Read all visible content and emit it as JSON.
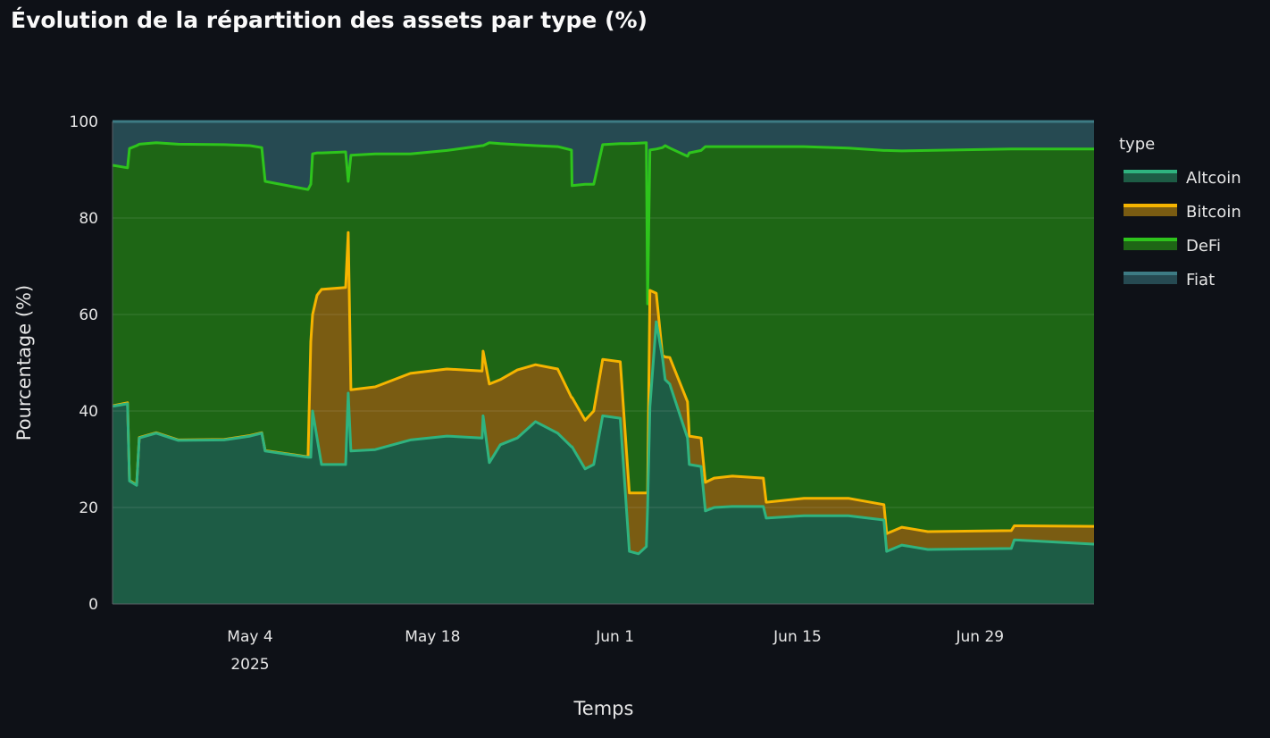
{
  "chart_data": {
    "type": "area",
    "stacked": true,
    "title": "Évolution de la répartition des assets par type (%)",
    "xlabel": "Temps",
    "ylabel": "Pourcentage (%)",
    "x_unit": "days since 2025-05-04",
    "xlim": [
      -10.55,
      64.75
    ],
    "ylim": [
      0,
      100
    ],
    "yticks": [
      0,
      20,
      40,
      60,
      80,
      100
    ],
    "xticks": [
      {
        "value": 0,
        "label": "May 4",
        "sublabel": "2025"
      },
      {
        "value": 14,
        "label": "May 18"
      },
      {
        "value": 28,
        "label": "Jun 1"
      },
      {
        "value": 42,
        "label": "Jun 15"
      },
      {
        "value": 56,
        "label": "Jun 29"
      }
    ],
    "grid": true,
    "legend": {
      "title": "type",
      "placement": "right"
    },
    "x": [
      -10.5,
      -9.4,
      -9.25,
      -8.7,
      -8.5,
      -7.2,
      -5.5,
      -2,
      0,
      0.9,
      1.16,
      4.45,
      4.66,
      4.8,
      5.14,
      5.48,
      7.33,
      7.53,
      7.74,
      9.6,
      12.3,
      15.1,
      17.8,
      17.88,
      18.36,
      19.2,
      20.5,
      21.9,
      23.6,
      24.66,
      24.7,
      25.7,
      26.37,
      27.05,
      28.4,
      29.1,
      29.8,
      30.4,
      30.5,
      30.68,
      31.16,
      31.64,
      31.85,
      32.2,
      33.56,
      33.7,
      34.6,
      34.93,
      35.6,
      37,
      39.38,
      39.6,
      42.5,
      45.9,
      48.63,
      48.84,
      50,
      52,
      58.4,
      58.63,
      64.7
    ],
    "series": [
      {
        "name": "Altcoin",
        "line_color": "#2fb37f",
        "fill_color": "#1d5c45",
        "values": [
          41,
          41.5,
          25.5,
          24.6,
          34.4,
          35.4,
          33.9,
          34,
          34.8,
          35.4,
          31.7,
          30.4,
          30.4,
          40,
          34.4,
          28.9,
          28.9,
          43.7,
          31.7,
          32,
          34,
          34.8,
          34.4,
          39,
          29.3,
          33,
          34.4,
          37.8,
          35.4,
          32.6,
          32.6,
          28,
          28.9,
          39,
          38.5,
          10.9,
          10.4,
          11.9,
          20,
          40.9,
          58.5,
          51,
          46.5,
          45.6,
          34.4,
          28.9,
          28.5,
          19.3,
          20,
          20.2,
          20.2,
          17.8,
          18.3,
          18.3,
          17.4,
          10.9,
          12.2,
          11.3,
          11.5,
          13.3,
          12.4
        ]
      },
      {
        "name": "Bitcoin",
        "line_color": "#f5b400",
        "fill_color": "#7a5c12",
        "values": [
          0.1,
          0.2,
          0.1,
          0.1,
          0.1,
          0.1,
          0.1,
          0.1,
          0.1,
          0.1,
          0.1,
          0.1,
          24,
          20,
          29.6,
          36.3,
          36.7,
          33.3,
          12.7,
          13,
          13.8,
          13.9,
          13.9,
          13.4,
          16.3,
          13.5,
          14.1,
          11.8,
          13.3,
          10.2,
          10.2,
          10.1,
          11.1,
          11.7,
          11.7,
          12.1,
          12.6,
          11.1,
          3,
          24.1,
          5.9,
          0.5,
          4.7,
          5.5,
          7.5,
          5.9,
          5.9,
          5.9,
          6.1,
          6.3,
          5.9,
          3.3,
          3.6,
          3.6,
          3.2,
          3.7,
          3.7,
          3.7,
          3.7,
          2.9,
          3.7
        ]
      },
      {
        "name": "DeFi",
        "line_color": "#2ec41c",
        "fill_color": "#1e6615",
        "values": [
          49.8,
          48.7,
          68.8,
          70.3,
          60.8,
          60.1,
          61.3,
          61.1,
          60.1,
          59.1,
          55.8,
          55.4,
          32.6,
          33.3,
          29.5,
          28.3,
          28.1,
          10.6,
          48.6,
          48.3,
          45.5,
          45.3,
          46.7,
          42.6,
          50,
          48.9,
          46.7,
          45.4,
          46.1,
          51.3,
          43.9,
          48.9,
          47,
          44.5,
          45.2,
          72.4,
          72.5,
          72.6,
          39.2,
          29.1,
          29.9,
          43.1,
          43.8,
          43.4,
          50.9,
          58.7,
          59.6,
          69.6,
          68.7,
          68.3,
          68.7,
          73.7,
          72.9,
          72.6,
          73.4,
          79.4,
          78,
          79,
          79.1,
          78.1,
          78.2
        ]
      },
      {
        "name": "Fiat",
        "line_color": "#3d7b84",
        "fill_color": "#264a52",
        "values": [
          9.1,
          9.6,
          5.6,
          5,
          4.7,
          4.4,
          4.7,
          4.8,
          5,
          5.4,
          12.4,
          14.1,
          13,
          6.7,
          6.5,
          6.5,
          6.3,
          12.4,
          7,
          6.7,
          6.7,
          6,
          5,
          5,
          4.4,
          4.6,
          4.8,
          5,
          5.2,
          5.9,
          13.3,
          13,
          13,
          4.8,
          4.6,
          4.6,
          4.5,
          4.4,
          37.8,
          5.9,
          5.7,
          5.4,
          5,
          5.5,
          7.2,
          6.5,
          6,
          5.2,
          5.2,
          5.2,
          5.2,
          5.2,
          5.2,
          5.5,
          6,
          6,
          6.1,
          6,
          5.7,
          5.7,
          5.7
        ]
      }
    ]
  }
}
